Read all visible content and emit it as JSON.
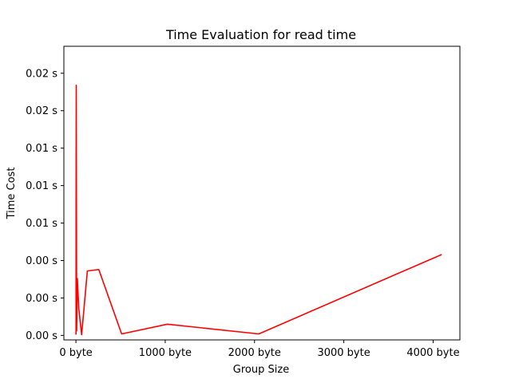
{
  "chart_data": {
    "type": "line",
    "title": "Time Evaluation for read time",
    "xlabel": "Group Size",
    "ylabel": "Time Cost",
    "xlim": [
      -135,
      4300
    ],
    "ylim": [
      -0.0003,
      0.0193
    ],
    "x_ticks": [
      {
        "value": 0,
        "label": "0 byte"
      },
      {
        "value": 1000,
        "label": "1000 byte"
      },
      {
        "value": 2000,
        "label": "2000 byte"
      },
      {
        "value": 3000,
        "label": "3000 byte"
      },
      {
        "value": 4000,
        "label": "4000 byte"
      }
    ],
    "y_ticks": [
      {
        "value": 0.0,
        "label": "0.00 s"
      },
      {
        "value": 0.0025,
        "label": "0.00 s"
      },
      {
        "value": 0.005,
        "label": "0.00 s"
      },
      {
        "value": 0.0075,
        "label": "0.01 s"
      },
      {
        "value": 0.01,
        "label": "0.01 s"
      },
      {
        "value": 0.0125,
        "label": "0.01 s"
      },
      {
        "value": 0.015,
        "label": "0.02 s"
      },
      {
        "value": 0.0175,
        "label": "0.02 s"
      }
    ],
    "grid": false,
    "series": [
      {
        "color": "#ff0000",
        "x": [
          1,
          2,
          4,
          8,
          16,
          32,
          64,
          128,
          256,
          512,
          1024,
          2048,
          4096
        ],
        "y": [
          5e-05,
          0.0098,
          0.0167,
          0.0003,
          0.0038,
          0.0018,
          5e-05,
          0.0043,
          0.0044,
          0.0001,
          0.00075,
          0.0001,
          0.0054
        ]
      }
    ]
  }
}
